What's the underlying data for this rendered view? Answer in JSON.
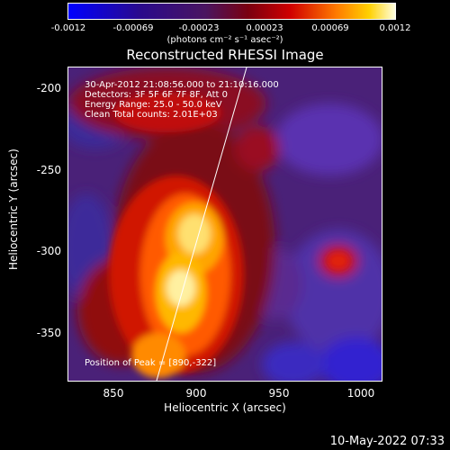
{
  "colorbar": {
    "ticks": [
      "-0.0012",
      "-0.00069",
      "-0.00023",
      "0.00023",
      "0.00069",
      "0.0012"
    ],
    "units": "(photons cm⁻² s⁻¹ asec⁻²)",
    "range": [
      -0.0012,
      0.0012
    ]
  },
  "title": "Reconstructed RHESSI Image",
  "image": {
    "info": [
      "30-Apr-2012 21:08:56.000 to 21:10:16.000",
      "Detectors: 3F 5F 6F 7F 8F, Att 0",
      "Energy Range: 25.0 - 50.0 keV",
      "Clean     Total counts: 2.01E+03"
    ],
    "peak_label": "Position of Peak = [890,-322]",
    "x_range": [
      820,
      1010
    ],
    "y_range": [
      -378,
      -188
    ]
  },
  "axes": {
    "xlabel": "Heliocentric X (arcsec)",
    "ylabel": "Heliocentric Y (arcsec)",
    "xticks": [
      "850",
      "900",
      "950",
      "1000"
    ],
    "yticks": [
      "-200",
      "-250",
      "-300",
      "-350"
    ]
  },
  "footer": {
    "date": "10-May-2022 07:33"
  }
}
